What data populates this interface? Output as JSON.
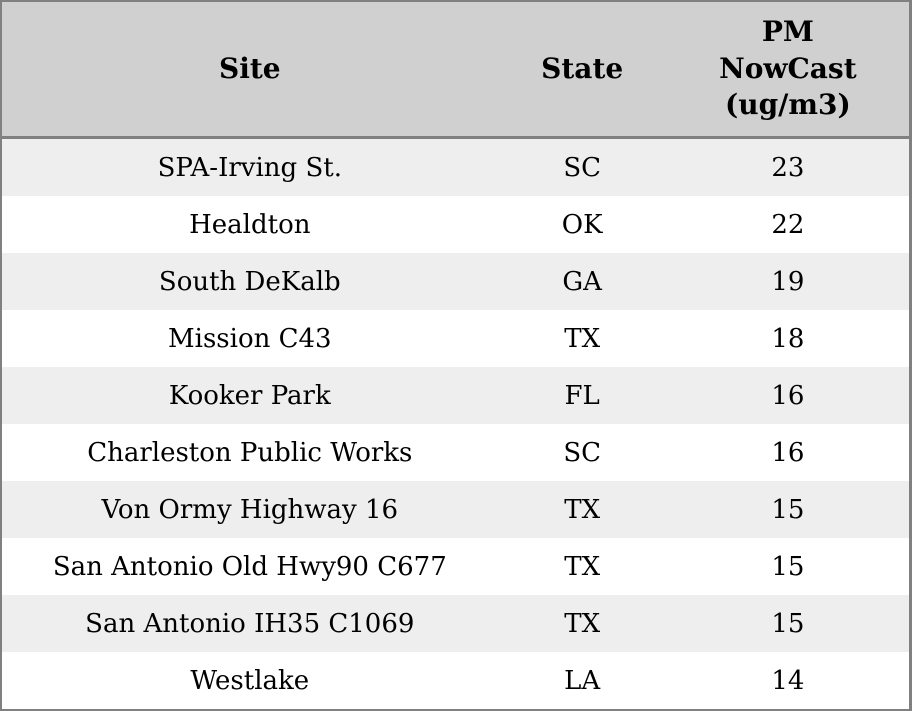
{
  "colors": {
    "header_bg": "#d0d0d0",
    "row_stripe_bg": "#eeeeee",
    "row_bg": "#ffffff",
    "border": "#808080",
    "text": "#000000"
  },
  "table": {
    "headers": [
      "Site",
      "State",
      "PM\nNowCast\n(ug/m3)"
    ]
  },
  "chart_data": {
    "type": "table",
    "title": "",
    "columns": [
      "Site",
      "State",
      "PM NowCast (ug/m3)"
    ],
    "rows": [
      [
        "SPA-Irving St.",
        "SC",
        23
      ],
      [
        "Healdton",
        "OK",
        22
      ],
      [
        "South DeKalb",
        "GA",
        19
      ],
      [
        "Mission C43",
        "TX",
        18
      ],
      [
        "Kooker Park",
        "FL",
        16
      ],
      [
        "Charleston Public Works",
        "SC",
        16
      ],
      [
        "Von Ormy Highway 16",
        "TX",
        15
      ],
      [
        "San Antonio Old Hwy90 C677",
        "TX",
        15
      ],
      [
        "San Antonio IH35 C1069",
        "TX",
        15
      ],
      [
        "Westlake",
        "LA",
        14
      ]
    ]
  }
}
